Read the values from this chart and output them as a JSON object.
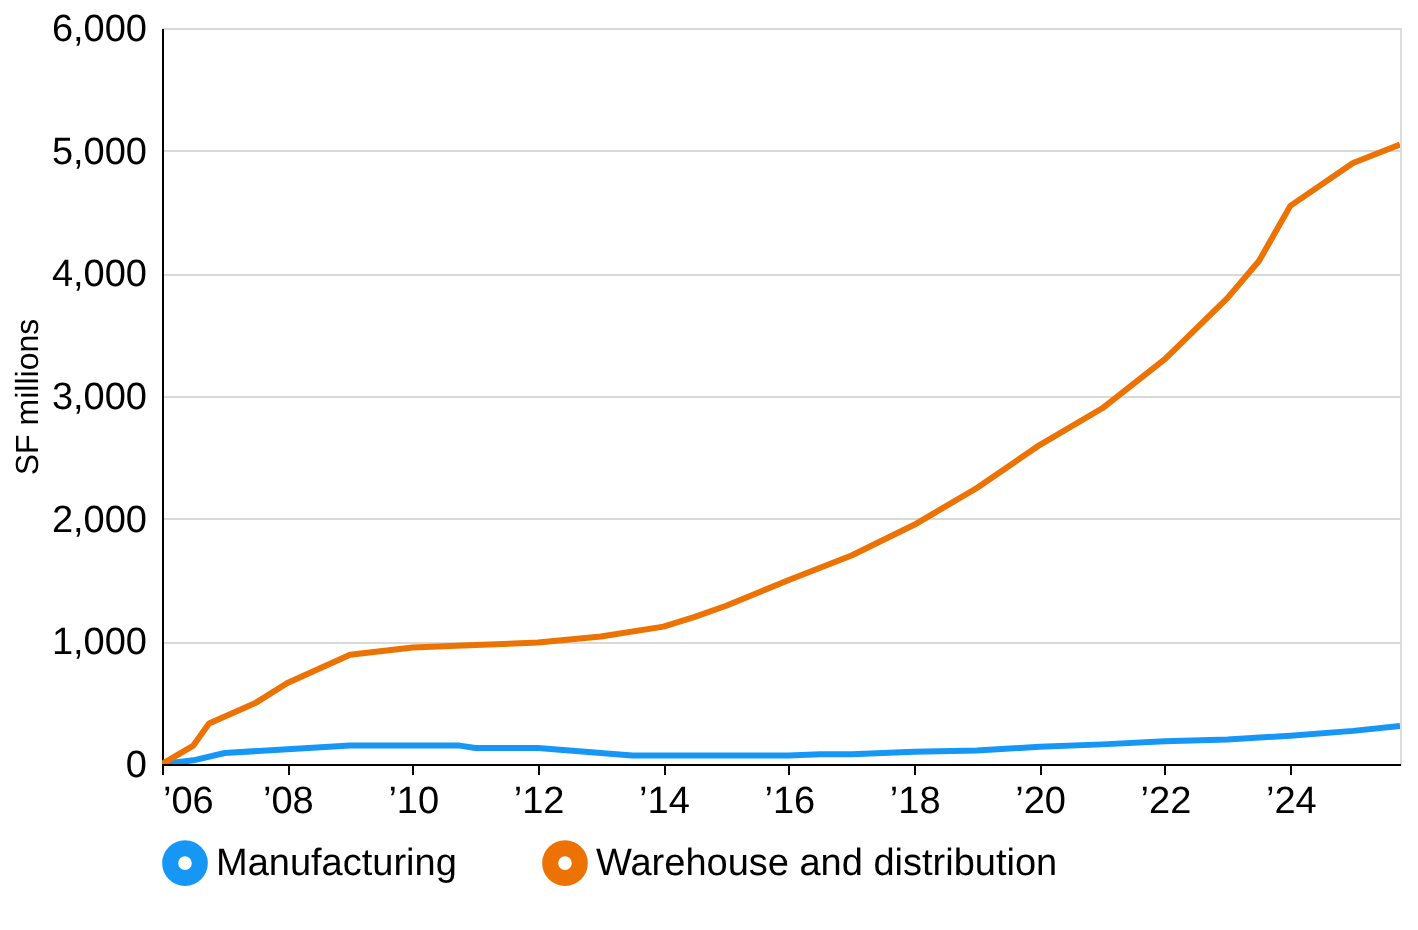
{
  "chart_data": {
    "type": "line",
    "ylabel": "SF millions",
    "xlim": [
      2006,
      2025.75
    ],
    "ylim": [
      0,
      6000
    ],
    "xticks": [
      {
        "value": 2006,
        "label": "’06"
      },
      {
        "value": 2008,
        "label": "’08"
      },
      {
        "value": 2010,
        "label": "’10"
      },
      {
        "value": 2012,
        "label": "’12"
      },
      {
        "value": 2014,
        "label": "’14"
      },
      {
        "value": 2016,
        "label": "’16"
      },
      {
        "value": 2018,
        "label": "’18"
      },
      {
        "value": 2020,
        "label": "’20"
      },
      {
        "value": 2022,
        "label": "’22"
      },
      {
        "value": 2024,
        "label": "’24"
      }
    ],
    "yticks": [
      0,
      {
        "value": 1000,
        "label": "1,000"
      },
      {
        "value": 2000,
        "label": "2,000"
      },
      {
        "value": 3000,
        "label": "3,000"
      },
      {
        "value": 4000,
        "label": "4,000"
      },
      {
        "value": 5000,
        "label": "5,000"
      },
      {
        "value": 6000,
        "label": "6,000"
      }
    ],
    "grid": "y",
    "legend": "bottom left",
    "marker": "none",
    "line_style": "solid",
    "series": [
      {
        "name": "Manufacturing",
        "color": "#1797f5",
        "x": [
          2006,
          2006.5,
          2007,
          2008,
          2009,
          2010,
          2010.75,
          2011,
          2012,
          2012.5,
          2013,
          2013.5,
          2014,
          2015,
          2016,
          2016.5,
          2017,
          2018,
          2019,
          2020,
          2021,
          2022,
          2023,
          2024,
          2025,
          2025.75
        ],
        "values": [
          0,
          30,
          90,
          120,
          150,
          150,
          150,
          130,
          130,
          110,
          90,
          70,
          70,
          70,
          70,
          80,
          80,
          100,
          110,
          140,
          160,
          185,
          200,
          230,
          270,
          310
        ]
      },
      {
        "name": "Warehouse and distribution",
        "color": "#ec7303",
        "x": [
          2006,
          2006.5,
          2006.75,
          2007.5,
          2008,
          2009,
          2010,
          2011,
          2012,
          2013,
          2014,
          2014.5,
          2015,
          2016,
          2017,
          2018,
          2019,
          2020,
          2021,
          2022,
          2023,
          2023.5,
          2024,
          2025,
          2025.75
        ],
        "values": [
          0,
          150,
          330,
          500,
          660,
          890,
          950,
          970,
          990,
          1040,
          1120,
          1200,
          1290,
          1500,
          1700,
          1950,
          2250,
          2600,
          2900,
          3300,
          3800,
          4100,
          4550,
          4900,
          5050
        ]
      }
    ]
  }
}
